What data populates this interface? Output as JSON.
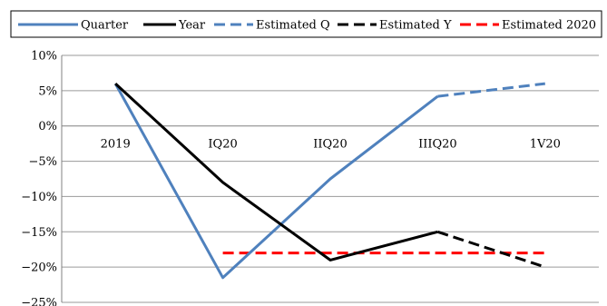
{
  "chart_data": {
    "type": "line",
    "title": "",
    "xlabel": "",
    "ylabel": "",
    "categories": [
      "2019",
      "IQ20",
      "IIQ20",
      "IIIQ20",
      "1V20"
    ],
    "yticks": [
      "10%",
      "5%",
      "0%",
      "−5%",
      "−10%",
      "−15%",
      "−20%",
      "−25%"
    ],
    "ylim": [
      -25,
      10
    ],
    "grid": true,
    "legend_position": "top",
    "series": [
      {
        "name": "Quarter",
        "color": "#4F81BD",
        "style": "solid",
        "points": [
          [
            0,
            6
          ],
          [
            1,
            -21.5
          ],
          [
            2,
            -7.5
          ],
          [
            3,
            4.2
          ]
        ]
      },
      {
        "name": "Year",
        "color": "#000000",
        "style": "solid",
        "points": [
          [
            0,
            6
          ],
          [
            1,
            -8
          ],
          [
            2,
            -19
          ],
          [
            3,
            -15
          ]
        ]
      },
      {
        "name": "Estimated Q",
        "color": "#4F81BD",
        "style": "dashed",
        "points": [
          [
            3,
            4.2
          ],
          [
            4,
            6
          ]
        ]
      },
      {
        "name": "Estimated Y",
        "color": "#000000",
        "style": "dashed",
        "points": [
          [
            3,
            -15
          ],
          [
            4,
            -20
          ]
        ]
      },
      {
        "name": "Estimated 2020",
        "color": "#FF0000",
        "style": "dashed",
        "points": [
          [
            1,
            -18
          ],
          [
            2,
            -18
          ],
          [
            3,
            -18
          ],
          [
            4,
            -18
          ]
        ]
      }
    ]
  }
}
